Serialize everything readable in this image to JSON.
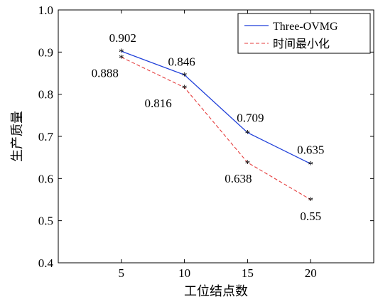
{
  "chart_data": {
    "type": "line",
    "title": "",
    "xlabel": "工位结点数",
    "ylabel": "生产质量",
    "x": [
      5,
      10,
      15,
      20
    ],
    "x_ticks": [
      "5",
      "10",
      "15",
      "20"
    ],
    "xlim": [
      0,
      25
    ],
    "ylim": [
      0.4,
      1.0
    ],
    "y_ticks": [
      "0.4",
      "0.5",
      "0.6",
      "0.7",
      "0.8",
      "0.9",
      "1.0"
    ],
    "grid": false,
    "legend_position": "top-right",
    "series": [
      {
        "name": "Three-OVMG",
        "values": [
          0.902,
          0.846,
          0.709,
          0.635
        ],
        "labels": [
          "0.902",
          "0.846",
          "0.709",
          "0.635"
        ],
        "color": "#1f3fd9",
        "style": "solid"
      },
      {
        "name": "时间最小化",
        "values": [
          0.888,
          0.816,
          0.638,
          0.55
        ],
        "labels": [
          "0.888",
          "0.816",
          "0.638",
          "0.55"
        ],
        "color": "#e53b3b",
        "style": "dashed"
      }
    ]
  }
}
